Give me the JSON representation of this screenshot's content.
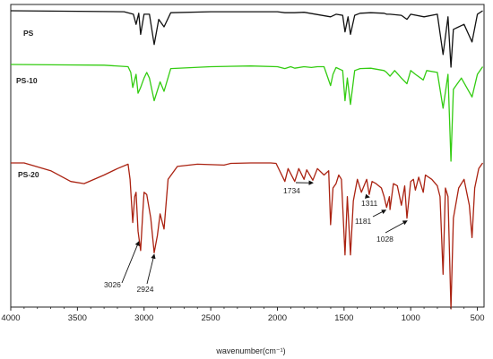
{
  "chart_data": {
    "type": "line",
    "title": "",
    "xlabel": "wavenumber(cm⁻¹)",
    "ylabel": "",
    "xlim": [
      4000,
      450
    ],
    "x_reversed": true,
    "y_axis_shown": false,
    "grid": false,
    "x_ticks": [
      4000,
      3500,
      3000,
      2500,
      2000,
      1500,
      1000,
      500
    ],
    "colors": {
      "PS": "#111111",
      "PS-10": "#33cc11",
      "PS-20": "#aa2211",
      "axis": "#222222"
    },
    "series": [
      {
        "name": "PS",
        "points": [
          [
            4000,
            0.97
          ],
          [
            3500,
            0.96
          ],
          [
            3150,
            0.95
          ],
          [
            3080,
            0.9
          ],
          [
            3060,
            0.7
          ],
          [
            3040,
            0.92
          ],
          [
            3026,
            0.5
          ],
          [
            3000,
            0.9
          ],
          [
            2960,
            0.9
          ],
          [
            2924,
            0.3
          ],
          [
            2890,
            0.8
          ],
          [
            2850,
            0.65
          ],
          [
            2800,
            0.93
          ],
          [
            2500,
            0.95
          ],
          [
            2000,
            0.95
          ],
          [
            1944,
            0.93
          ],
          [
            1870,
            0.93
          ],
          [
            1800,
            0.94
          ],
          [
            1601,
            0.85
          ],
          [
            1560,
            0.9
          ],
          [
            1510,
            0.88
          ],
          [
            1493,
            0.55
          ],
          [
            1470,
            0.85
          ],
          [
            1452,
            0.5
          ],
          [
            1420,
            0.88
          ],
          [
            1380,
            0.92
          ],
          [
            1300,
            0.93
          ],
          [
            1200,
            0.92
          ],
          [
            1180,
            0.9
          ],
          [
            1155,
            0.9
          ],
          [
            1070,
            0.88
          ],
          [
            1028,
            0.8
          ],
          [
            1000,
            0.9
          ],
          [
            900,
            0.85
          ],
          [
            800,
            0.9
          ],
          [
            757,
            0.1
          ],
          [
            720,
            0.85
          ],
          [
            698,
            -0.15
          ],
          [
            680,
            0.6
          ],
          [
            600,
            0.7
          ],
          [
            540,
            0.35
          ],
          [
            500,
            0.9
          ],
          [
            460,
            0.97
          ]
        ]
      },
      {
        "name": "PS-10",
        "points": [
          [
            4000,
            0.96
          ],
          [
            3700,
            0.95
          ],
          [
            3300,
            0.94
          ],
          [
            3120,
            0.9
          ],
          [
            3100,
            0.75
          ],
          [
            3085,
            0.35
          ],
          [
            3060,
            0.7
          ],
          [
            3045,
            0.2
          ],
          [
            3026,
            0.35
          ],
          [
            3000,
            0.6
          ],
          [
            2980,
            0.75
          ],
          [
            2960,
            0.6
          ],
          [
            2924,
            0.0
          ],
          [
            2880,
            0.5
          ],
          [
            2850,
            0.25
          ],
          [
            2800,
            0.85
          ],
          [
            2500,
            0.9
          ],
          [
            2200,
            0.92
          ],
          [
            2000,
            0.9
          ],
          [
            1944,
            0.85
          ],
          [
            1900,
            0.9
          ],
          [
            1870,
            0.86
          ],
          [
            1800,
            0.9
          ],
          [
            1745,
            0.88
          ],
          [
            1700,
            0.9
          ],
          [
            1650,
            0.9
          ],
          [
            1601,
            0.4
          ],
          [
            1583,
            0.7
          ],
          [
            1560,
            0.88
          ],
          [
            1510,
            0.8
          ],
          [
            1493,
            0.0
          ],
          [
            1475,
            0.6
          ],
          [
            1452,
            -0.1
          ],
          [
            1420,
            0.8
          ],
          [
            1380,
            0.85
          ],
          [
            1300,
            0.86
          ],
          [
            1200,
            0.8
          ],
          [
            1181,
            0.75
          ],
          [
            1155,
            0.65
          ],
          [
            1120,
            0.8
          ],
          [
            1070,
            0.6
          ],
          [
            1028,
            0.45
          ],
          [
            1000,
            0.8
          ],
          [
            965,
            0.7
          ],
          [
            906,
            0.55
          ],
          [
            880,
            0.8
          ],
          [
            800,
            0.75
          ],
          [
            757,
            -0.2
          ],
          [
            720,
            0.7
          ],
          [
            698,
            -1.6
          ],
          [
            680,
            0.3
          ],
          [
            620,
            0.6
          ],
          [
            540,
            0.1
          ],
          [
            500,
            0.7
          ],
          [
            460,
            0.9
          ]
        ]
      },
      {
        "name": "PS-20",
        "points": [
          [
            4000,
            0.98
          ],
          [
            3900,
            0.98
          ],
          [
            3700,
            0.8
          ],
          [
            3550,
            0.55
          ],
          [
            3450,
            0.5
          ],
          [
            3300,
            0.7
          ],
          [
            3200,
            0.85
          ],
          [
            3120,
            0.95
          ],
          [
            3105,
            0.6
          ],
          [
            3085,
            -0.4
          ],
          [
            3070,
            0.2
          ],
          [
            3060,
            0.3
          ],
          [
            3045,
            -0.6
          ],
          [
            3026,
            -1.05
          ],
          [
            3010,
            -0.2
          ],
          [
            3000,
            0.3
          ],
          [
            2980,
            0.25
          ],
          [
            2950,
            -0.3
          ],
          [
            2924,
            -1.1
          ],
          [
            2900,
            -0.7
          ],
          [
            2880,
            -0.2
          ],
          [
            2850,
            -0.55
          ],
          [
            2820,
            0.6
          ],
          [
            2750,
            0.9
          ],
          [
            2600,
            0.95
          ],
          [
            2400,
            0.93
          ],
          [
            2350,
            0.97
          ],
          [
            2200,
            0.98
          ],
          [
            2050,
            0.98
          ],
          [
            2010,
            0.97
          ],
          [
            1944,
            0.55
          ],
          [
            1920,
            0.85
          ],
          [
            1870,
            0.55
          ],
          [
            1840,
            0.85
          ],
          [
            1800,
            0.6
          ],
          [
            1780,
            0.82
          ],
          [
            1734,
            0.58
          ],
          [
            1700,
            0.85
          ],
          [
            1650,
            0.7
          ],
          [
            1615,
            0.8
          ],
          [
            1601,
            -0.45
          ],
          [
            1583,
            0.4
          ],
          [
            1560,
            0.5
          ],
          [
            1540,
            0.7
          ],
          [
            1520,
            0.6
          ],
          [
            1493,
            -1.15
          ],
          [
            1475,
            0.2
          ],
          [
            1452,
            -1.15
          ],
          [
            1430,
            0.1
          ],
          [
            1400,
            0.6
          ],
          [
            1370,
            0.3
          ],
          [
            1330,
            0.6
          ],
          [
            1311,
            0.25
          ],
          [
            1290,
            0.55
          ],
          [
            1260,
            0.5
          ],
          [
            1220,
            0.4
          ],
          [
            1200,
            0.2
          ],
          [
            1181,
            -0.05
          ],
          [
            1160,
            0.2
          ],
          [
            1155,
            -0.1
          ],
          [
            1130,
            0.5
          ],
          [
            1100,
            0.45
          ],
          [
            1070,
            0.0
          ],
          [
            1045,
            0.45
          ],
          [
            1028,
            -0.3
          ],
          [
            1000,
            0.55
          ],
          [
            980,
            0.6
          ],
          [
            965,
            0.35
          ],
          [
            940,
            0.65
          ],
          [
            906,
            0.3
          ],
          [
            890,
            0.7
          ],
          [
            842,
            0.6
          ],
          [
            800,
            0.45
          ],
          [
            780,
            0.2
          ],
          [
            757,
            -1.6
          ],
          [
            740,
            0.4
          ],
          [
            720,
            0.2
          ],
          [
            698,
            -2.4
          ],
          [
            680,
            -0.3
          ],
          [
            640,
            0.4
          ],
          [
            600,
            0.6
          ],
          [
            560,
            0.0
          ],
          [
            540,
            -0.75
          ],
          [
            520,
            0.4
          ],
          [
            490,
            0.85
          ],
          [
            460,
            0.98
          ]
        ]
      }
    ],
    "annotations": [
      {
        "label": "3026",
        "x": 3026,
        "series": "PS-20"
      },
      {
        "label": "2924",
        "x": 2924,
        "series": "PS-20"
      },
      {
        "label": "1734",
        "x": 1734,
        "series": "PS-20"
      },
      {
        "label": "1311",
        "x": 1311,
        "series": "PS-20"
      },
      {
        "label": "1181",
        "x": 1181,
        "series": "PS-20"
      },
      {
        "label": "1028",
        "x": 1028,
        "series": "PS-20"
      }
    ]
  }
}
